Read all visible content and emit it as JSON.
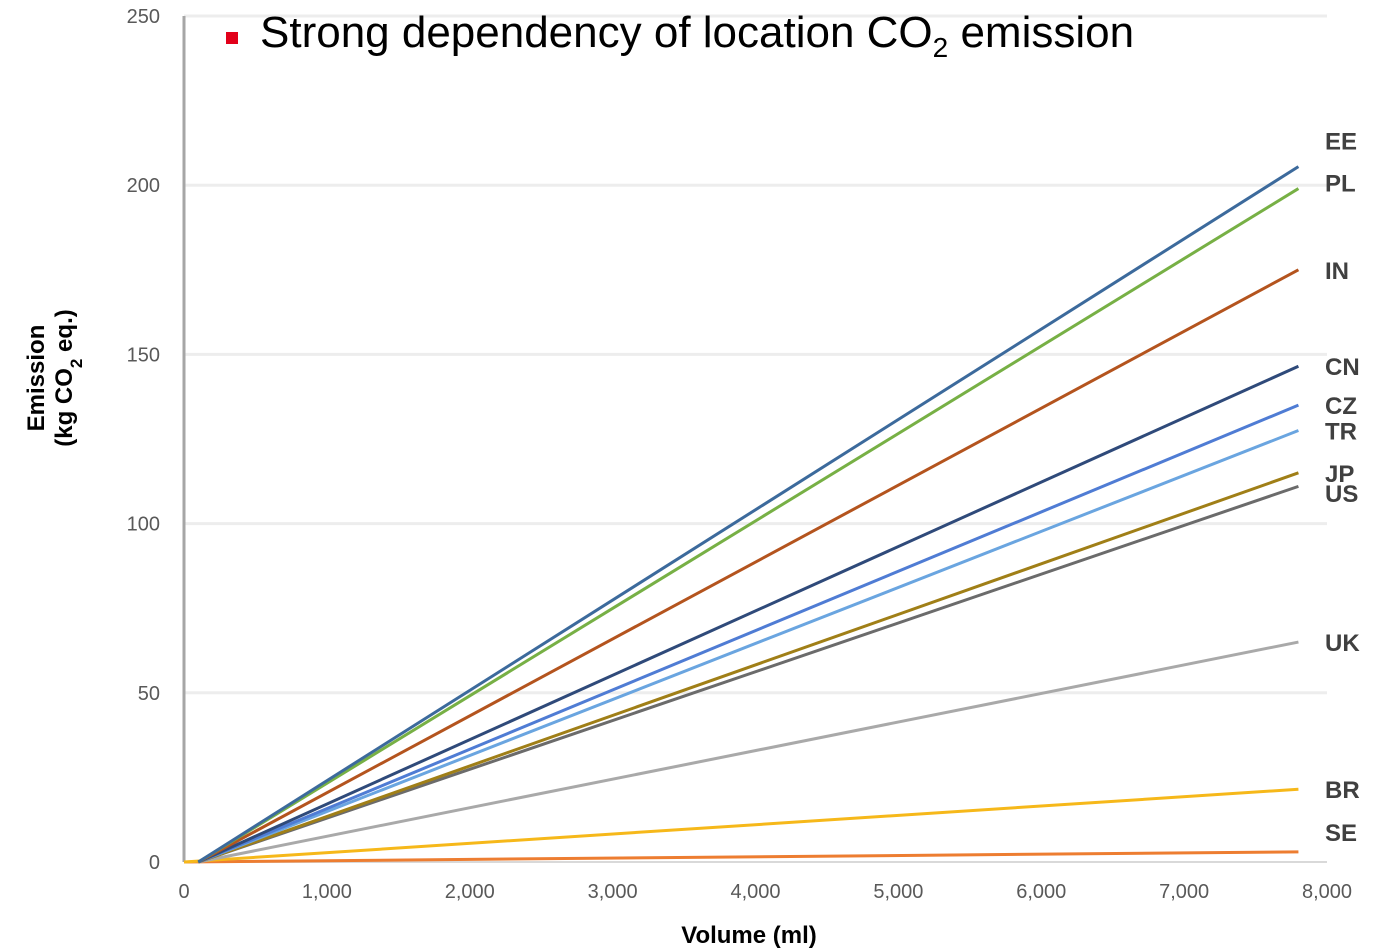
{
  "headline": {
    "text_before": "Strong dependency of location CO",
    "subscript": "2",
    "text_after": " emission",
    "bullet_color": "#e2001a"
  },
  "chart_data": {
    "type": "line",
    "title": "",
    "xlabel": "Volume (ml)",
    "ylabel_line1": "Emission",
    "ylabel_line2_before": "(kg CO",
    "ylabel_line2_sub": "2",
    "ylabel_line2_after": " eq.)",
    "xlim": [
      0,
      8000
    ],
    "ylim": [
      0,
      250
    ],
    "x_ticks": [
      0,
      1000,
      2000,
      3000,
      4000,
      5000,
      6000,
      7000,
      8000
    ],
    "x_tick_labels": [
      "0",
      "1,000",
      "2,000",
      "3,000",
      "4,000",
      "5,000",
      "6,000",
      "7,000",
      "8,000"
    ],
    "y_ticks": [
      0,
      50,
      100,
      150,
      200,
      250
    ],
    "y_tick_labels": [
      "0",
      "50",
      "100",
      "150",
      "200",
      "250"
    ],
    "grid": "horizontal",
    "series": [
      {
        "name": "EE",
        "color": "#3c6a9c",
        "x": [
          100,
          7800
        ],
        "y": [
          0,
          205.5
        ]
      },
      {
        "name": "PL",
        "color": "#77b045",
        "x": [
          100,
          7800
        ],
        "y": [
          0,
          199
        ]
      },
      {
        "name": "IN",
        "color": "#b4541e",
        "x": [
          100,
          7800
        ],
        "y": [
          0,
          175
        ]
      },
      {
        "name": "CN",
        "color": "#2f4a7a",
        "x": [
          100,
          7800
        ],
        "y": [
          0,
          146.5
        ]
      },
      {
        "name": "CZ",
        "color": "#4f7cd4",
        "x": [
          100,
          7800
        ],
        "y": [
          0,
          135
        ]
      },
      {
        "name": "TR",
        "color": "#6aa5e0",
        "x": [
          100,
          7800
        ],
        "y": [
          0,
          127.5
        ]
      },
      {
        "name": "JP",
        "color": "#a07f17",
        "x": [
          100,
          7800
        ],
        "y": [
          0,
          115
        ]
      },
      {
        "name": "US",
        "color": "#6b6b6b",
        "x": [
          100,
          7800
        ],
        "y": [
          0,
          111
        ]
      },
      {
        "name": "UK",
        "color": "#a9a9a9",
        "x": [
          100,
          7800
        ],
        "y": [
          0,
          65
        ]
      },
      {
        "name": "BR",
        "color": "#f6b81a",
        "x": [
          0,
          7800
        ],
        "y": [
          0,
          21.5
        ]
      },
      {
        "name": "SE",
        "color": "#ed7d31",
        "x": [
          0,
          7800
        ],
        "y": [
          0,
          3
        ]
      }
    ]
  }
}
